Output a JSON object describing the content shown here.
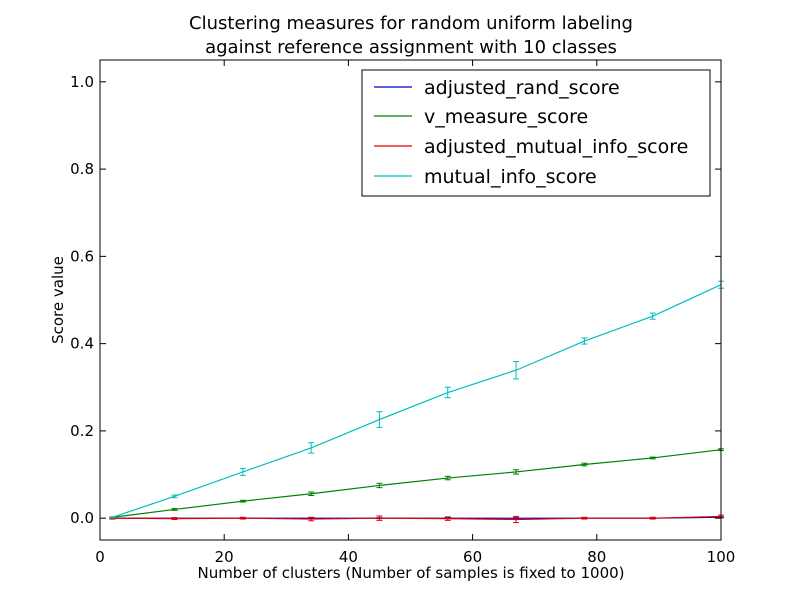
{
  "chart_data": {
    "type": "line",
    "title_lines": [
      "Clustering measures for random uniform labeling",
      "against reference assignment with 10 classes"
    ],
    "xlabel": "Number of clusters (Number of samples is fixed to 1000)",
    "ylabel": "Score value",
    "xlim": [
      0,
      100
    ],
    "ylim": [
      -0.05,
      1.05
    ],
    "xticks": [
      0,
      20,
      40,
      60,
      80,
      100
    ],
    "yticks": [
      0.0,
      0.2,
      0.4,
      0.6,
      0.8,
      1.0
    ],
    "xtick_labels": [
      "0",
      "20",
      "40",
      "60",
      "80",
      "100"
    ],
    "ytick_labels": [
      "0.0",
      "0.2",
      "0.4",
      "0.6",
      "0.8",
      "1.0"
    ],
    "legend_position": "top-right",
    "x": [
      2,
      12,
      23,
      34,
      45,
      56,
      67,
      78,
      89,
      100
    ],
    "series": [
      {
        "name": "adjusted_rand_score",
        "color": "#0000cc",
        "values": [
          0.0,
          0.0,
          0.0,
          0.0,
          0.0,
          0.0,
          0.0,
          0.0,
          0.0,
          0.002
        ],
        "errors": [
          0.001,
          0.001,
          0.001,
          0.001,
          0.001,
          0.001,
          0.001,
          0.001,
          0.001,
          0.001
        ]
      },
      {
        "name": "v_measure_score",
        "color": "#008000",
        "values": [
          0.002,
          0.02,
          0.039,
          0.056,
          0.075,
          0.092,
          0.106,
          0.123,
          0.138,
          0.157
        ],
        "errors": [
          0.001,
          0.002,
          0.002,
          0.004,
          0.005,
          0.004,
          0.005,
          0.003,
          0.002,
          0.002
        ]
      },
      {
        "name": "adjusted_mutual_info_score",
        "color": "#e00000",
        "values": [
          0.0,
          -0.001,
          0.0,
          -0.002,
          0.0,
          -0.001,
          -0.003,
          0.0,
          0.0,
          0.004
        ],
        "errors": [
          0.002,
          0.002,
          0.002,
          0.004,
          0.005,
          0.004,
          0.007,
          0.002,
          0.002,
          0.003
        ]
      },
      {
        "name": "mutual_info_score",
        "color": "#00bfbf",
        "values": [
          0.002,
          0.05,
          0.106,
          0.161,
          0.226,
          0.288,
          0.339,
          0.406,
          0.463,
          0.535
        ],
        "errors": [
          0.001,
          0.003,
          0.008,
          0.012,
          0.018,
          0.012,
          0.02,
          0.007,
          0.007,
          0.008
        ]
      }
    ]
  }
}
